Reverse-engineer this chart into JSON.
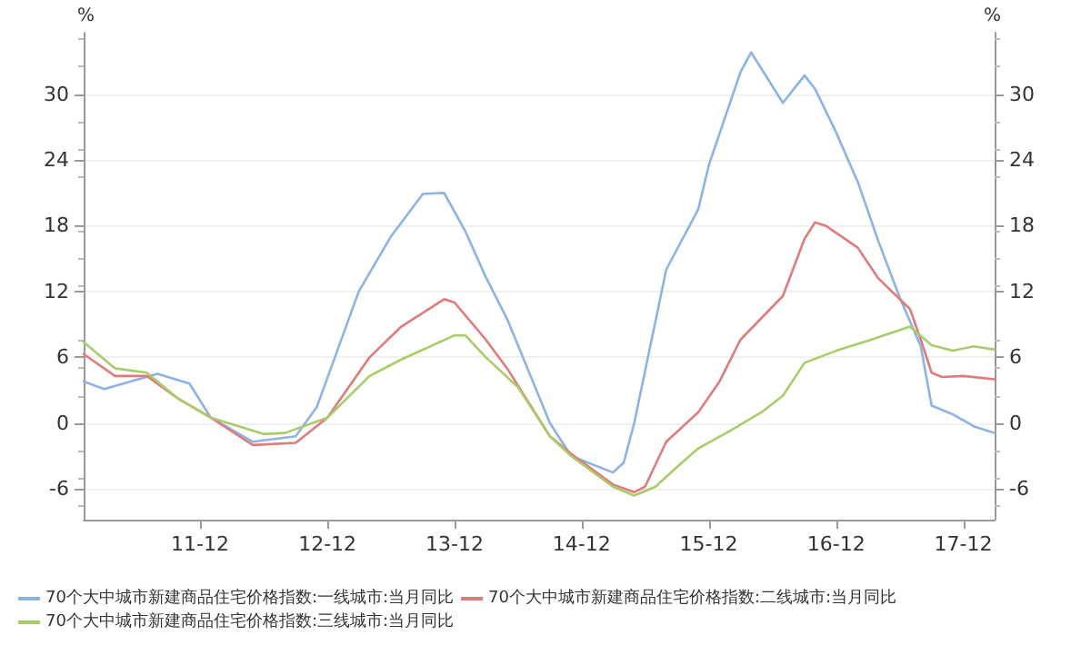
{
  "chart_data": {
    "type": "line",
    "ylabel": "%",
    "y2label": "%",
    "xlim": [
      "2011-01",
      "2018-03"
    ],
    "xticks": [
      {
        "value": "2011-12",
        "label": "11-12"
      },
      {
        "value": "2012-12",
        "label": "12-12"
      },
      {
        "value": "2013-12",
        "label": "13-12"
      },
      {
        "value": "2014-12",
        "label": "14-12"
      },
      {
        "value": "2015-12",
        "label": "15-12"
      },
      {
        "value": "2016-12",
        "label": "16-12"
      },
      {
        "value": "2017-12",
        "label": "17-12"
      }
    ],
    "ylim": [
      -8.8,
      35.6
    ],
    "yticks": [
      -6,
      0,
      6,
      12,
      18,
      24,
      30
    ],
    "y2lim": [
      -8.8,
      35.6
    ],
    "y2ticks": [
      -6,
      0,
      6,
      12,
      18,
      24,
      30
    ],
    "grid": "y",
    "legend": "bottom",
    "marker": "none",
    "line_style": "solid",
    "series": [
      {
        "name": "70个大中城市新建商品住宅价格指数:一线城市:当月同比",
        "color": "#8db3e2",
        "x": [
          "2011-01",
          "2011-03",
          "2011-08",
          "2011-11",
          "2012-01",
          "2012-05",
          "2012-09",
          "2012-11",
          "2013-03",
          "2013-06",
          "2013-09",
          "2013-11",
          "2014-01",
          "2014-03",
          "2014-05",
          "2014-09",
          "2014-11",
          "2015-03",
          "2015-04",
          "2015-05",
          "2015-08",
          "2015-11",
          "2015-12",
          "2016-03",
          "2016-04",
          "2016-07",
          "2016-09",
          "2016-10",
          "2016-12",
          "2017-02",
          "2017-04",
          "2017-06",
          "2017-08",
          "2017-09",
          "2017-11",
          "2018-01",
          "2018-03"
        ],
        "values": [
          3.8,
          3.1,
          4.5,
          3.6,
          0.5,
          -1.7,
          -1.2,
          1.5,
          12,
          17,
          20.9,
          21,
          17.5,
          13.3,
          9.5,
          0,
          -3,
          -4.5,
          -3.6,
          0,
          14,
          19.5,
          23.5,
          32,
          33.8,
          29.2,
          31.7,
          30.5,
          26.5,
          22,
          16.6,
          11.5,
          7,
          1.6,
          0.8,
          -0.3,
          -0.9
        ]
      },
      {
        "name": "70个大中城市新建商品住宅价格指数:二线城市:当月同比",
        "color": "#e07b7b",
        "x": [
          "2011-01",
          "2011-04",
          "2011-07",
          "2011-10",
          "2012-01",
          "2012-05",
          "2012-09",
          "2012-12",
          "2013-04",
          "2013-07",
          "2013-11",
          "2013-12",
          "2014-03",
          "2014-05",
          "2014-09",
          "2014-11",
          "2015-03",
          "2015-05",
          "2015-06",
          "2015-08",
          "2015-11",
          "2016-01",
          "2016-03",
          "2016-07",
          "2016-09",
          "2016-10",
          "2016-11",
          "2017-02",
          "2017-04",
          "2017-07",
          "2017-08",
          "2017-09",
          "2017-10",
          "2017-12",
          "2018-03"
        ],
        "values": [
          6.3,
          4.3,
          4.3,
          2.2,
          0.5,
          -2,
          -1.8,
          0.5,
          6,
          8.8,
          11.3,
          11,
          7.6,
          5,
          -1.2,
          -2.8,
          -5.6,
          -6.3,
          -5.8,
          -1.7,
          1,
          3.8,
          7.6,
          11.6,
          16.8,
          18.3,
          18,
          16,
          13.2,
          10.4,
          7.6,
          4.6,
          4.2,
          4.3,
          4
        ]
      },
      {
        "name": "70个大中城市新建商品住宅价格指数:三线城市:当月同比",
        "color": "#a9cc6b",
        "x": [
          "2011-01",
          "2011-04",
          "2011-07",
          "2011-10",
          "2012-01",
          "2012-06",
          "2012-08",
          "2012-12",
          "2013-04",
          "2013-07",
          "2013-12",
          "2014-01",
          "2014-03",
          "2014-06",
          "2014-09",
          "2014-11",
          "2015-03",
          "2015-05",
          "2015-07",
          "2015-09",
          "2015-11",
          "2016-02",
          "2016-05",
          "2016-07",
          "2016-09",
          "2016-12",
          "2017-03",
          "2017-07",
          "2017-09",
          "2017-11",
          "2018-01",
          "2018-03"
        ],
        "values": [
          7.4,
          5,
          4.6,
          2.2,
          0.5,
          -1,
          -0.9,
          0.5,
          4.3,
          5.8,
          8,
          8,
          6,
          3.3,
          -1.2,
          -3,
          -5.8,
          -6.6,
          -5.8,
          -4,
          -2.3,
          -0.7,
          1,
          2.5,
          5.5,
          6.6,
          7.5,
          8.8,
          7.1,
          6.6,
          7,
          6.7
        ]
      }
    ]
  }
}
